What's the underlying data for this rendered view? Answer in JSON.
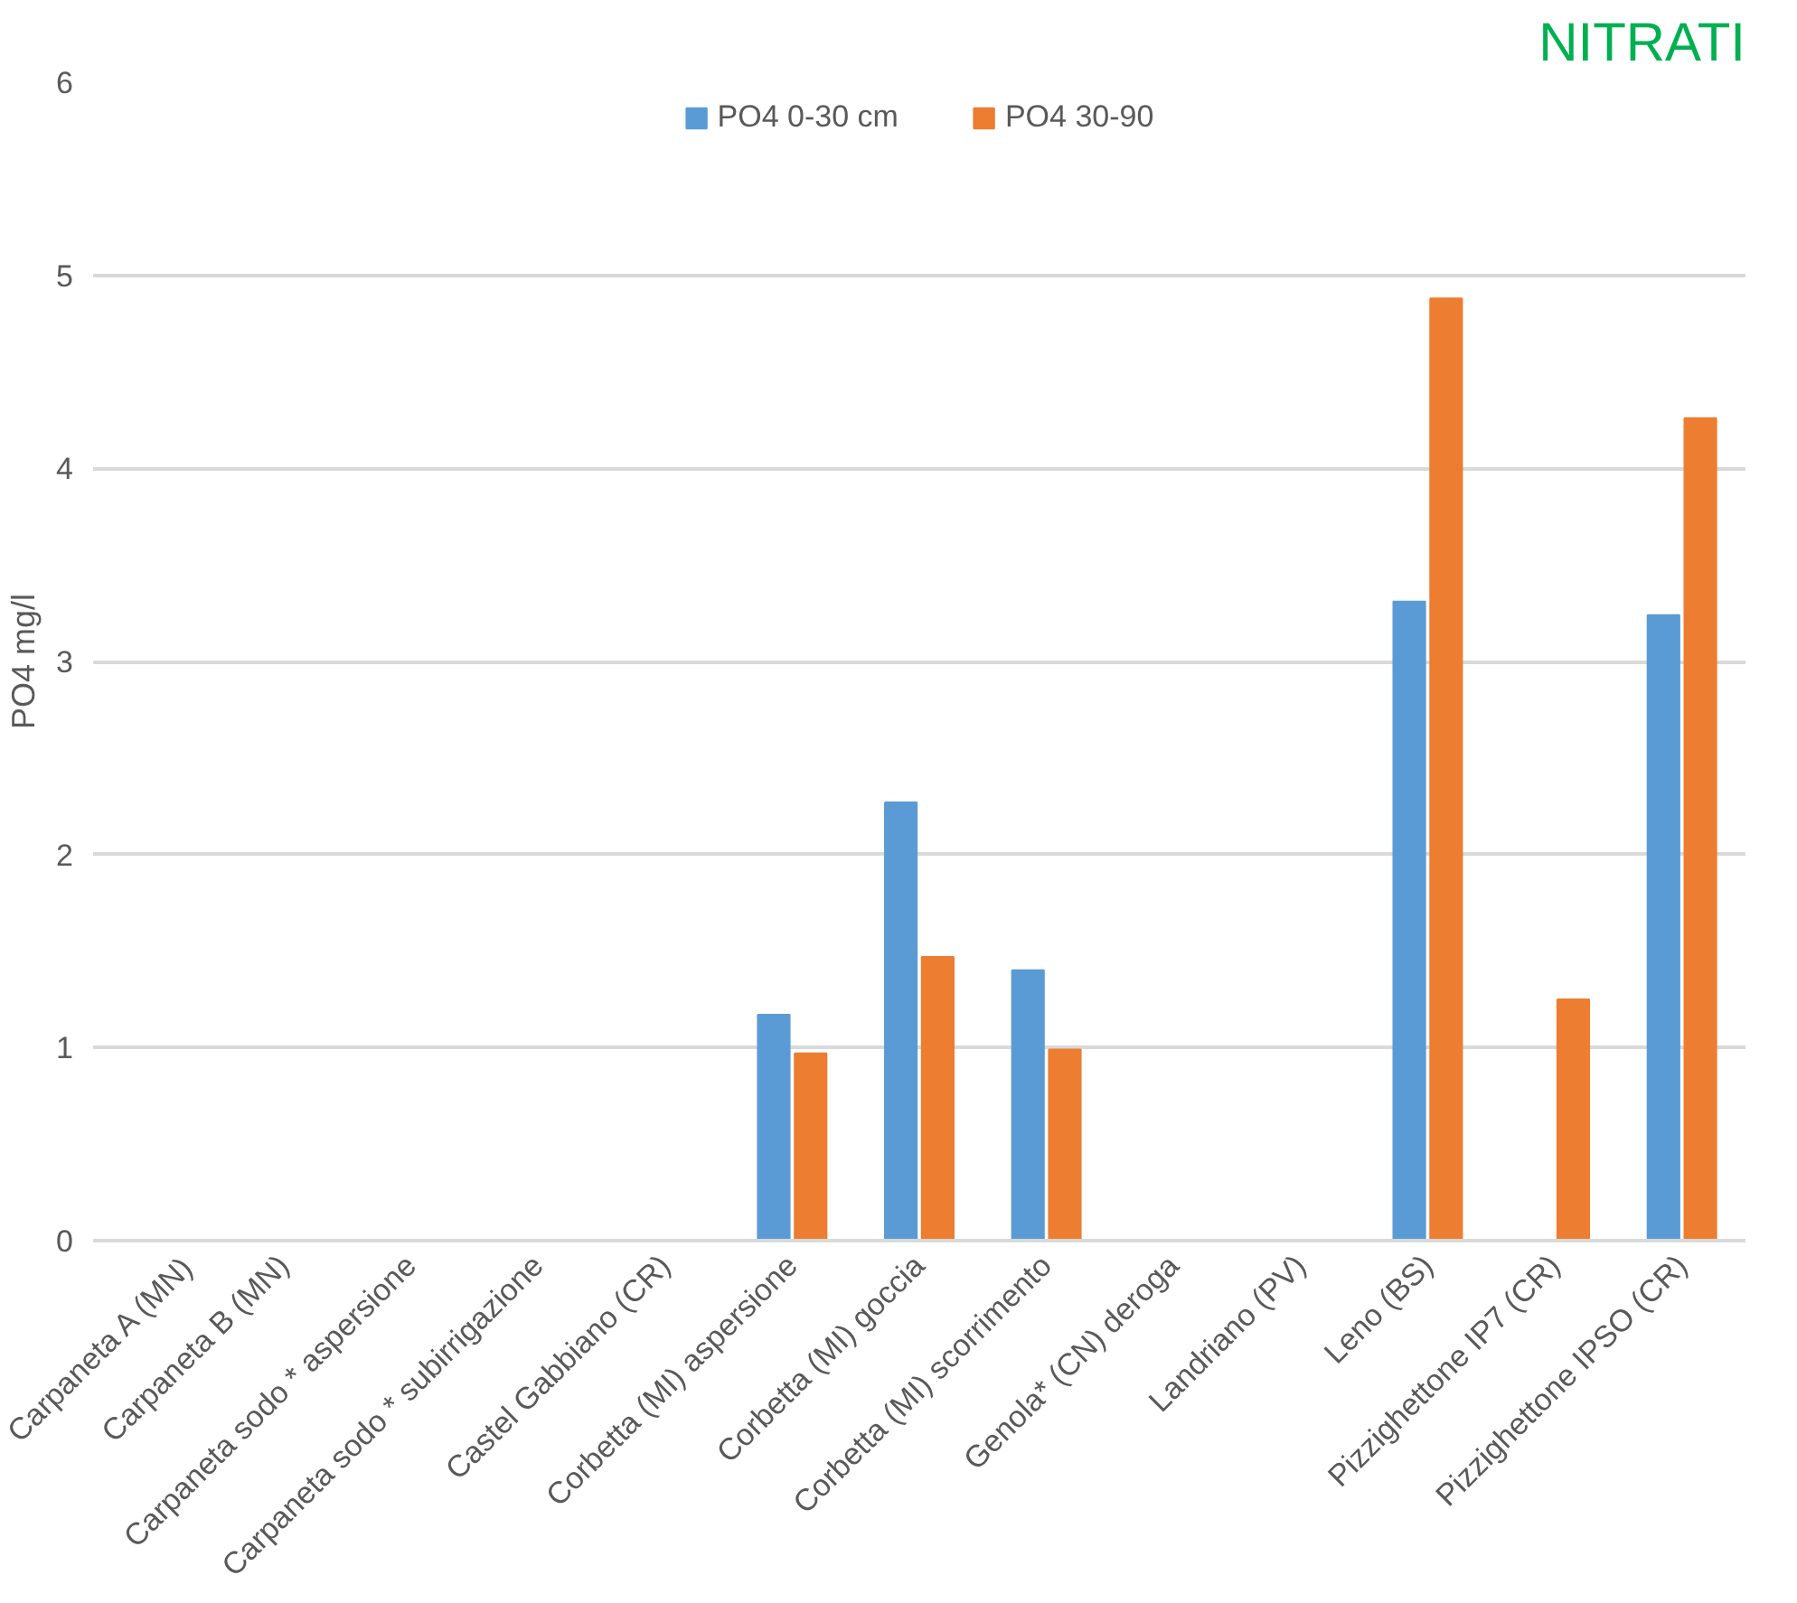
{
  "chart_data": {
    "type": "bar",
    "title": "NITRATI",
    "ylabel": "PO4 mg/l",
    "categories": [
      "Carpaneta A (MN)",
      "Carpaneta B (MN)",
      "Carpaneta sodo * aspersione",
      "Carpaneta sodo * subirrigazione",
      "Castel Gabbiano (CR)",
      "Corbetta (MI) aspersione",
      "Corbetta (MI) goccia",
      "Corbetta (MI) scorrimento",
      "Genola* (CN) deroga",
      "Landriano (PV)",
      "Leno (BS)",
      "Pizzighettone IP7 (CR)",
      "Pizzighettone IPSO (CR)"
    ],
    "series": [
      {
        "name": "PO4 0-30 cm",
        "color": "#5b9bd5",
        "values": [
          null,
          null,
          null,
          null,
          null,
          1.17,
          2.27,
          1.4,
          null,
          null,
          3.31,
          null,
          3.24
        ]
      },
      {
        "name": "PO4 30-90",
        "color": "#ed7d31",
        "values": [
          null,
          null,
          null,
          null,
          null,
          0.97,
          1.47,
          0.99,
          null,
          null,
          4.88,
          1.25,
          4.26
        ]
      }
    ],
    "ylim": [
      0,
      6
    ],
    "yticks": [
      0,
      1,
      2,
      3,
      4,
      5,
      6
    ],
    "grid": "y",
    "legend": "top"
  }
}
